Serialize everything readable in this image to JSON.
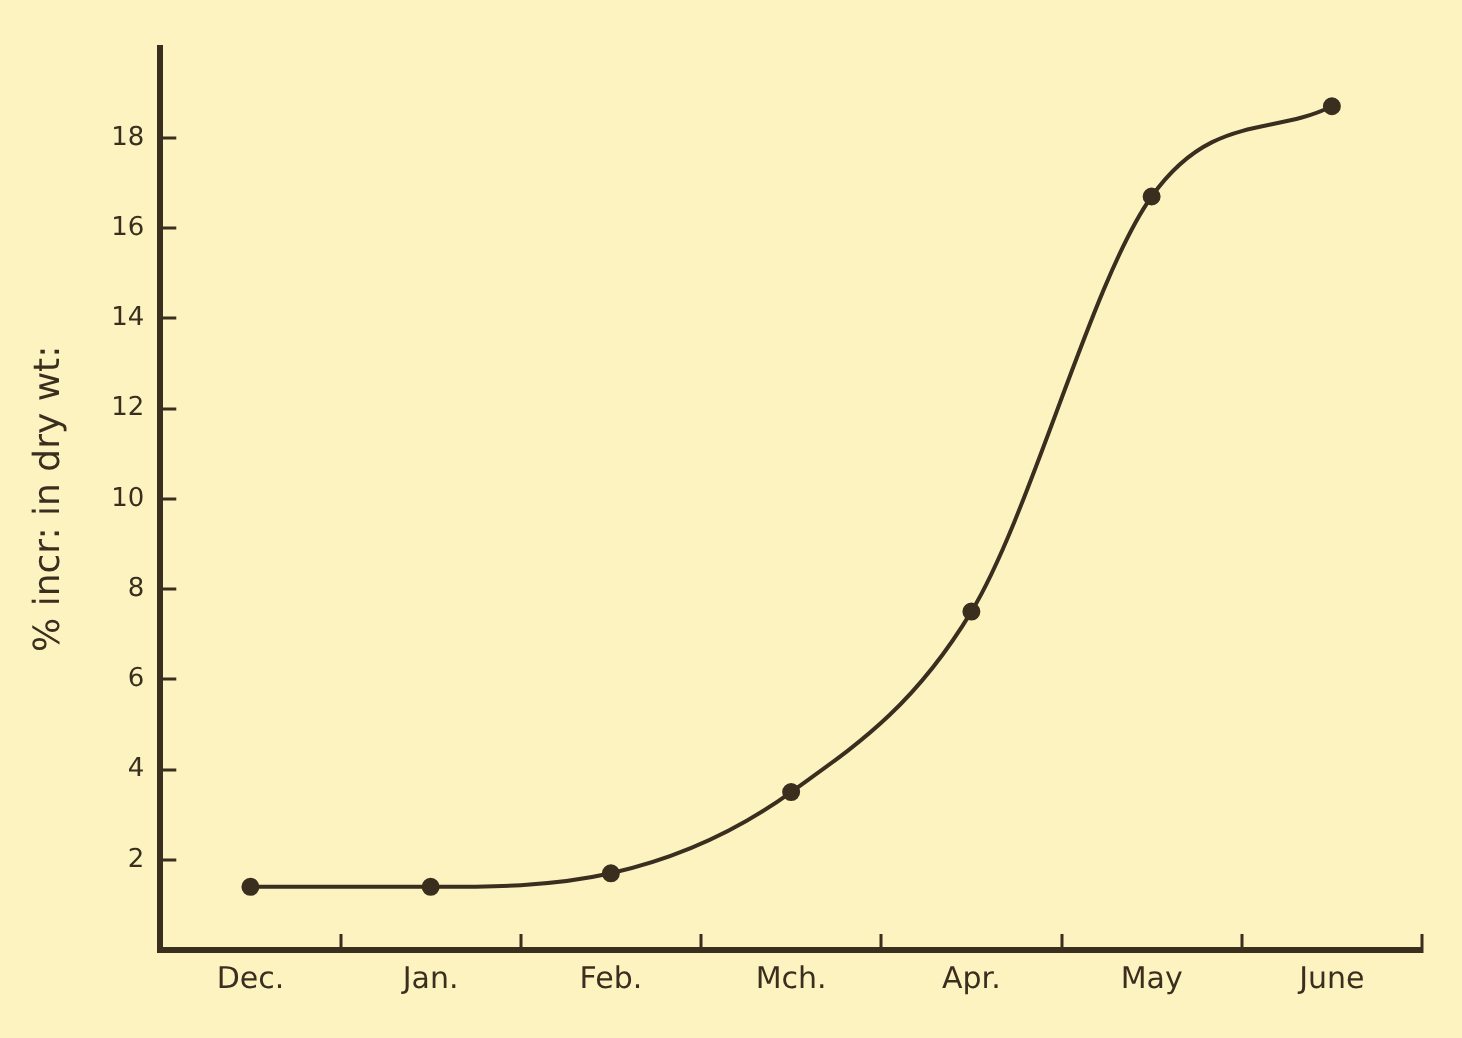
{
  "chart_data": {
    "type": "line",
    "ylabel": "% incr: in dry wt:",
    "categories": [
      "Dec.",
      "Jan.",
      "Feb.",
      "Mch.",
      "Apr.",
      "May",
      "June"
    ],
    "series": [
      {
        "color": "#3a2e1e",
        "values": [
          1.4,
          1.4,
          1.7,
          3.5,
          7.5,
          16.7,
          18.7
        ]
      }
    ],
    "ylim": [
      0,
      20
    ],
    "yticks": [
      2,
      4,
      6,
      8,
      10,
      12,
      14,
      16,
      18
    ],
    "marker": "circle",
    "line_style": "solid",
    "legend": false
  }
}
